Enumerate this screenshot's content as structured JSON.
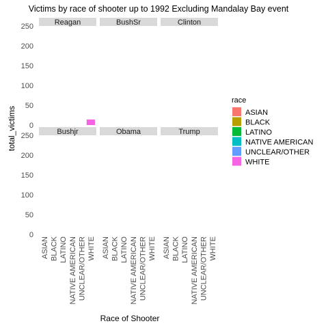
{
  "colors": {
    "strip": "#d9d9d9",
    "ASIAN": "#F8766D",
    "BLACK": "#B79F00",
    "LATINO": "#00BA38",
    "NATIVE AMERICAN": "#00BFC4",
    "UNCLEAR/OTHER": "#619CFF",
    "WHITE": "#F564E3"
  },
  "chart_data": {
    "type": "bar",
    "title": "Victims by race of shooter up to 1992 Excluding Mandalay Bay event",
    "xlabel": "Race of Shooter",
    "ylabel": "total_victims",
    "ylim": [
      0,
      250
    ],
    "yticks": [
      0,
      50,
      100,
      150,
      200,
      250
    ],
    "grid": false,
    "legend": {
      "title": "race",
      "position": "right",
      "entries": [
        "ASIAN",
        "BLACK",
        "LATINO",
        "NATIVE AMERICAN",
        "UNCLEAR/OTHER",
        "WHITE"
      ]
    },
    "categories": [
      "ASIAN",
      "BLACK",
      "LATINO",
      "NATIVE AMERICAN",
      "UNCLEAR/OTHER",
      "WHITE"
    ],
    "facets": [
      {
        "name": "Reagan",
        "bars": [
          {
            "category": "WHITE",
            "value": 14
          }
        ]
      },
      {
        "name": "BushSr",
        "bars": []
      },
      {
        "name": "Clinton",
        "bars": []
      },
      {
        "name": "Bushjr",
        "bars": []
      },
      {
        "name": "Obama",
        "bars": []
      },
      {
        "name": "Trump",
        "bars": []
      }
    ]
  }
}
